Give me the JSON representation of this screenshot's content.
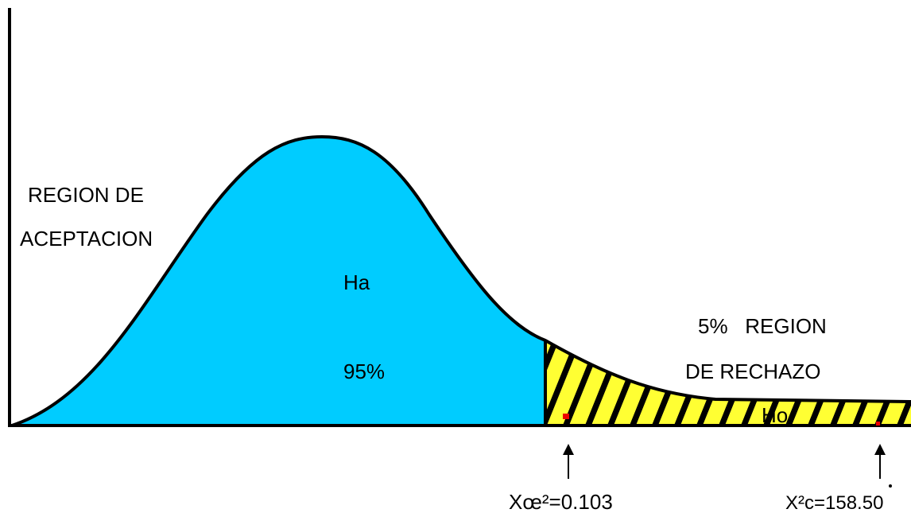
{
  "acceptance_region": {
    "line1": "REGION DE",
    "line2": "ACEPTACION",
    "hypothesis": "Ha",
    "percent": "95%"
  },
  "rejection_region": {
    "line1": "5%   REGION",
    "line2": "DE RECHAZO",
    "hypothesis": "Ho"
  },
  "markers": {
    "critical": "Xœ²=0.103",
    "calculated": "X²c=158.50"
  }
}
